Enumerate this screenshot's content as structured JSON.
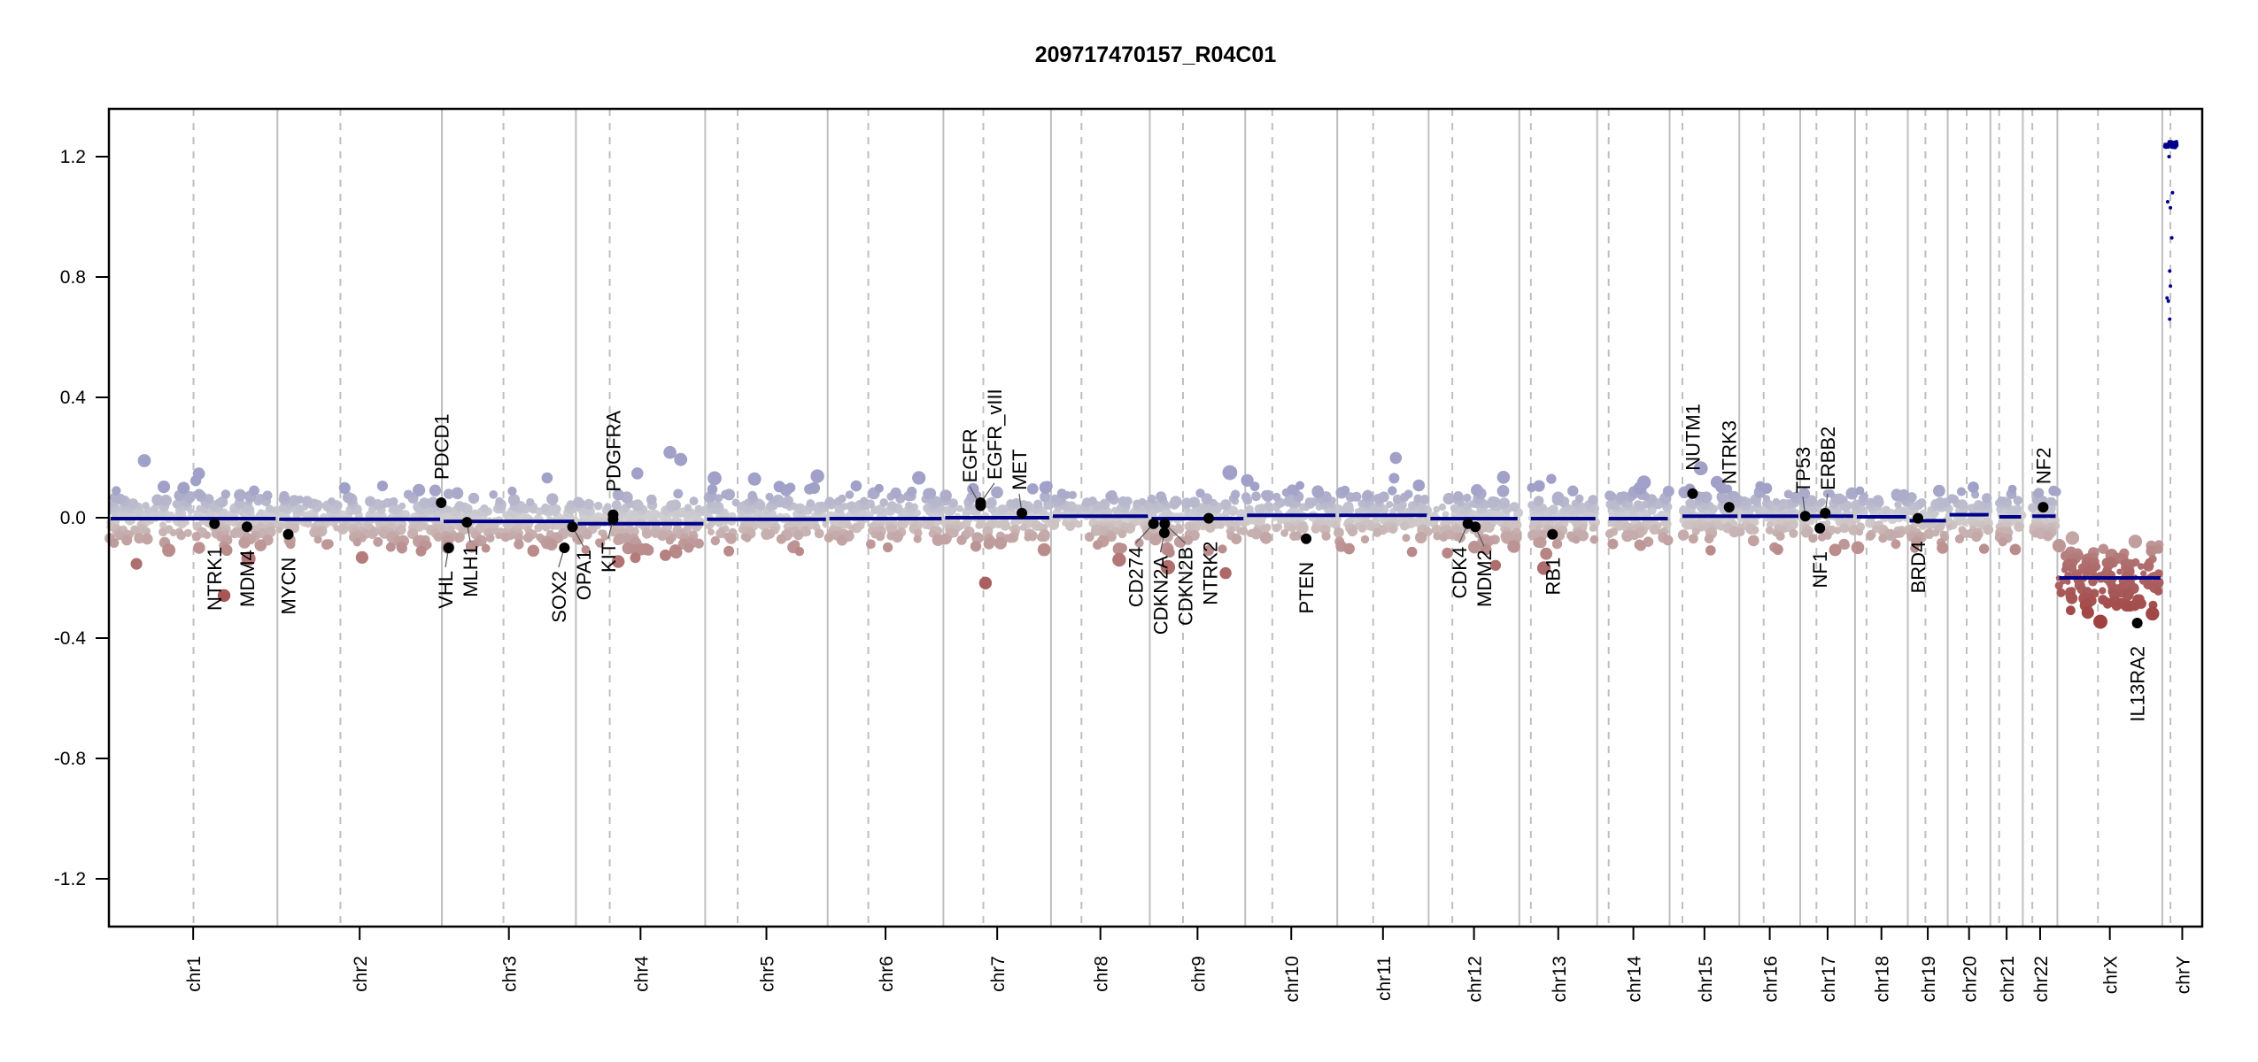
{
  "chart_data": {
    "type": "scatter",
    "title": "209717470157_R04C01",
    "xlabel": "",
    "ylabel": "",
    "ylim": [
      -1.35,
      1.35
    ],
    "yticks": [
      "1.2",
      "0.8",
      "0.4",
      "0.0",
      "-0.4",
      "-0.8",
      "-1.2"
    ],
    "ytick_values": [
      1.2,
      0.8,
      0.4,
      0.0,
      -0.4,
      -0.8,
      -1.2
    ],
    "grid": "chromosome boundaries (solid) and centromeres (dashed)",
    "colors": {
      "segment": "#00008b",
      "gain": "#a0a0c8",
      "neutral": "#d3d3d3",
      "loss": "#b07070",
      "deep_loss": "#a04040",
      "grid": "#bfbfbf"
    },
    "chromosomes": [
      {
        "name": "chr1",
        "length_mb": 249,
        "centromere_mb": 125,
        "segment": -0.003
      },
      {
        "name": "chr2",
        "length_mb": 243,
        "centromere_mb": 93,
        "segment": -0.005
      },
      {
        "name": "chr3",
        "length_mb": 198,
        "centromere_mb": 91,
        "segment": -0.012
      },
      {
        "name": "chr4",
        "length_mb": 191,
        "centromere_mb": 50,
        "segment": -0.02
      },
      {
        "name": "chr5",
        "length_mb": 181,
        "centromere_mb": 48,
        "segment": -0.005
      },
      {
        "name": "chr6",
        "length_mb": 171,
        "centromere_mb": 60,
        "segment": -0.003
      },
      {
        "name": "chr7",
        "length_mb": 159,
        "centromere_mb": 59,
        "segment": 0.0
      },
      {
        "name": "chr8",
        "length_mb": 146,
        "centromere_mb": 45,
        "segment": 0.005
      },
      {
        "name": "chr9",
        "length_mb": 141,
        "centromere_mb": 49,
        "segment": -0.003
      },
      {
        "name": "chr10",
        "length_mb": 136,
        "centromere_mb": 40,
        "segment": 0.008
      },
      {
        "name": "chr11",
        "length_mb": 135,
        "centromere_mb": 53,
        "segment": 0.008
      },
      {
        "name": "chr12",
        "length_mb": 134,
        "centromere_mb": 35,
        "segment": -0.003
      },
      {
        "name": "chr13",
        "length_mb": 115,
        "centromere_mb": 17,
        "segment": -0.003
      },
      {
        "name": "chr14",
        "length_mb": 107,
        "centromere_mb": 17,
        "segment": -0.003
      },
      {
        "name": "chr15",
        "length_mb": 103,
        "centromere_mb": 19,
        "segment": 0.005
      },
      {
        "name": "chr16",
        "length_mb": 90,
        "centromere_mb": 36,
        "segment": 0.005
      },
      {
        "name": "chr17",
        "length_mb": 81,
        "centromere_mb": 24,
        "segment": 0.005
      },
      {
        "name": "chr18",
        "length_mb": 78,
        "centromere_mb": 17,
        "segment": 0.003
      },
      {
        "name": "chr19",
        "length_mb": 59,
        "centromere_mb": 26,
        "segment": -0.01
      },
      {
        "name": "chr20",
        "length_mb": 63,
        "centromere_mb": 28,
        "segment": 0.01
      },
      {
        "name": "chr21",
        "length_mb": 48,
        "centromere_mb": 13,
        "segment": 0.003
      },
      {
        "name": "chr22",
        "length_mb": 51,
        "centromere_mb": 14,
        "segment": 0.005
      },
      {
        "name": "chrX",
        "length_mb": 155,
        "centromere_mb": 60,
        "segment": -0.2
      },
      {
        "name": "chrY",
        "length_mb": 59,
        "centromere_mb": 12,
        "segment": 1.24
      }
    ],
    "genes": [
      {
        "name": "NTRK1",
        "chr": "chr1",
        "pos_mb": 156,
        "value": -0.02
      },
      {
        "name": "MDM4",
        "chr": "chr1",
        "pos_mb": 204,
        "value": -0.03
      },
      {
        "name": "MYCN",
        "chr": "chr2",
        "pos_mb": 16,
        "value": -0.055
      },
      {
        "name": "PDCD1",
        "chr": "chr2",
        "pos_mb": 242,
        "value": 0.05
      },
      {
        "name": "VHL",
        "chr": "chr3",
        "pos_mb": 10,
        "value": -0.1
      },
      {
        "name": "MLH1",
        "chr": "chr3",
        "pos_mb": 37,
        "value": -0.015
      },
      {
        "name": "SOX2",
        "chr": "chr3",
        "pos_mb": 181,
        "value": -0.1
      },
      {
        "name": "OPA1",
        "chr": "chr3",
        "pos_mb": 193,
        "value": -0.03
      },
      {
        "name": "KIT",
        "chr": "chr4",
        "pos_mb": 55,
        "value": -0.005
      },
      {
        "name": "PDGFRA",
        "chr": "chr4",
        "pos_mb": 55,
        "value": 0.01
      },
      {
        "name": "EGFR",
        "chr": "chr7",
        "pos_mb": 55,
        "value": 0.04
      },
      {
        "name": "EGFR_vIII",
        "chr": "chr7",
        "pos_mb": 55,
        "value": 0.05
      },
      {
        "name": "MET",
        "chr": "chr7",
        "pos_mb": 116,
        "value": 0.015
      },
      {
        "name": "CD274",
        "chr": "chr9",
        "pos_mb": 5.5,
        "value": -0.02
      },
      {
        "name": "CDKN2A",
        "chr": "chr9",
        "pos_mb": 21.5,
        "value": -0.05
      },
      {
        "name": "CDKN2B",
        "chr": "chr9",
        "pos_mb": 22,
        "value": -0.02
      },
      {
        "name": "NTRK2",
        "chr": "chr9",
        "pos_mb": 87,
        "value": -0.002
      },
      {
        "name": "PTEN",
        "chr": "chr10",
        "pos_mb": 90,
        "value": -0.07
      },
      {
        "name": "CDK4",
        "chr": "chr12",
        "pos_mb": 58,
        "value": -0.02
      },
      {
        "name": "MDM2",
        "chr": "chr12",
        "pos_mb": 69,
        "value": -0.03
      },
      {
        "name": "RB1",
        "chr": "chr13",
        "pos_mb": 49,
        "value": -0.055
      },
      {
        "name": "NUTM1",
        "chr": "chr15",
        "pos_mb": 34,
        "value": 0.08
      },
      {
        "name": "NTRK3",
        "chr": "chr15",
        "pos_mb": 88,
        "value": 0.035
      },
      {
        "name": "TP53",
        "chr": "chr17",
        "pos_mb": 7.5,
        "value": 0.005
      },
      {
        "name": "NF1",
        "chr": "chr17",
        "pos_mb": 29,
        "value": -0.035
      },
      {
        "name": "ERBB2",
        "chr": "chr17",
        "pos_mb": 37,
        "value": 0.015
      },
      {
        "name": "BRD4",
        "chr": "chr19",
        "pos_mb": 15,
        "value": -0.002
      },
      {
        "name": "NF2",
        "chr": "chr22",
        "pos_mb": 30,
        "value": 0.035
      },
      {
        "name": "IL13RA2",
        "chr": "chrX",
        "pos_mb": 118,
        "value": -0.35
      }
    ]
  }
}
